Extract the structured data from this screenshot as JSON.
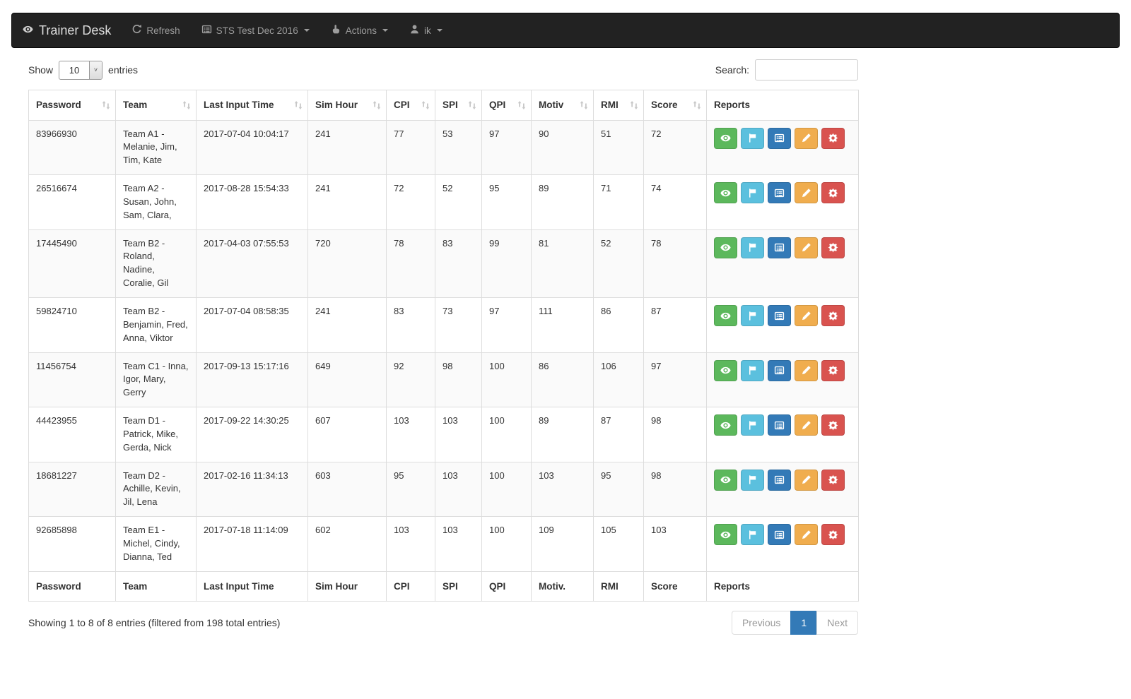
{
  "navbar": {
    "brand": "Trainer Desk",
    "items": [
      {
        "label": "Refresh",
        "icon": "refresh-icon",
        "caret": false
      },
      {
        "label": "STS Test Dec 2016",
        "icon": "list-alt-icon",
        "caret": true
      },
      {
        "label": "Actions",
        "icon": "hand-up-icon",
        "caret": true
      },
      {
        "label": "ik",
        "icon": "user-icon",
        "caret": true
      }
    ]
  },
  "controls": {
    "show_label": "Show",
    "entries_label": "entries",
    "page_length": "10",
    "search_label": "Search:",
    "search_value": ""
  },
  "table": {
    "headers": [
      "Password",
      "Team",
      "Last Input Time",
      "Sim Hour",
      "CPI",
      "SPI",
      "QPI",
      "Motiv",
      "RMI",
      "Score",
      "Reports"
    ],
    "footer_headers": [
      "Password",
      "Team",
      "Last Input Time",
      "Sim Hour",
      "CPI",
      "SPI",
      "QPI",
      "Motiv.",
      "RMI",
      "Score",
      "Reports"
    ],
    "column_keys": [
      "password",
      "team",
      "last_input",
      "sim_hour",
      "cpi",
      "spi",
      "qpi",
      "motiv",
      "rmi",
      "score"
    ],
    "rows": [
      {
        "password": "83966930",
        "team": "Team A1 - Melanie, Jim, Tim, Kate",
        "last_input": "2017-07-04 10:04:17",
        "sim_hour": "241",
        "cpi": "77",
        "spi": "53",
        "qpi": "97",
        "motiv": "90",
        "rmi": "51",
        "score": "72"
      },
      {
        "password": "26516674",
        "team": "Team A2 - Susan, John, Sam, Clara,",
        "last_input": "2017-08-28 15:54:33",
        "sim_hour": "241",
        "cpi": "72",
        "spi": "52",
        "qpi": "95",
        "motiv": "89",
        "rmi": "71",
        "score": "74"
      },
      {
        "password": "17445490",
        "team": "Team B2 -Roland, Nadine, Coralie, Gil",
        "last_input": "2017-04-03 07:55:53",
        "sim_hour": "720",
        "cpi": "78",
        "spi": "83",
        "qpi": "99",
        "motiv": "81",
        "rmi": "52",
        "score": "78"
      },
      {
        "password": "59824710",
        "team": "Team B2 - Benjamin, Fred, Anna, Viktor",
        "last_input": "2017-07-04 08:58:35",
        "sim_hour": "241",
        "cpi": "83",
        "spi": "73",
        "qpi": "97",
        "motiv": "111",
        "rmi": "86",
        "score": "87"
      },
      {
        "password": "11456754",
        "team": "Team C1 - Inna, Igor, Mary, Gerry",
        "last_input": "2017-09-13 15:17:16",
        "sim_hour": "649",
        "cpi": "92",
        "spi": "98",
        "qpi": "100",
        "motiv": "86",
        "rmi": "106",
        "score": "97"
      },
      {
        "password": "44423955",
        "team": "Team D1 - Patrick, Mike, Gerda, Nick",
        "last_input": "2017-09-22 14:30:25",
        "sim_hour": "607",
        "cpi": "103",
        "spi": "103",
        "qpi": "100",
        "motiv": "89",
        "rmi": "87",
        "score": "98"
      },
      {
        "password": "18681227",
        "team": "Team D2 - Achille, Kevin, Jil, Lena",
        "last_input": "2017-02-16 11:34:13",
        "sim_hour": "603",
        "cpi": "95",
        "spi": "103",
        "qpi": "100",
        "motiv": "103",
        "rmi": "95",
        "score": "98"
      },
      {
        "password": "92685898",
        "team": "Team E1 - Michel, Cindy, Dianna, Ted",
        "last_input": "2017-07-18 11:14:09",
        "sim_hour": "602",
        "cpi": "103",
        "spi": "103",
        "qpi": "100",
        "motiv": "109",
        "rmi": "105",
        "score": "103"
      }
    ],
    "actions": [
      {
        "name": "view",
        "icon": "eye-icon",
        "color": "#5cb85c"
      },
      {
        "name": "flag",
        "icon": "flag-icon",
        "color": "#5bc0de"
      },
      {
        "name": "report",
        "icon": "list-alt-icon",
        "color": "#337ab7"
      },
      {
        "name": "edit",
        "icon": "pencil-icon",
        "color": "#f0ad4e"
      },
      {
        "name": "settings",
        "icon": "gear-icon",
        "color": "#d9534f"
      }
    ]
  },
  "footer": {
    "info": "Showing 1 to 8 of 8 entries (filtered from 198 total entries)",
    "pagination": {
      "previous": "Previous",
      "current": "1",
      "next": "Next"
    }
  },
  "colors": {
    "navbar_bg": "#222222",
    "navbar_link": "#9d9d9d",
    "active_page": "#337ab7",
    "border": "#dddddd"
  }
}
